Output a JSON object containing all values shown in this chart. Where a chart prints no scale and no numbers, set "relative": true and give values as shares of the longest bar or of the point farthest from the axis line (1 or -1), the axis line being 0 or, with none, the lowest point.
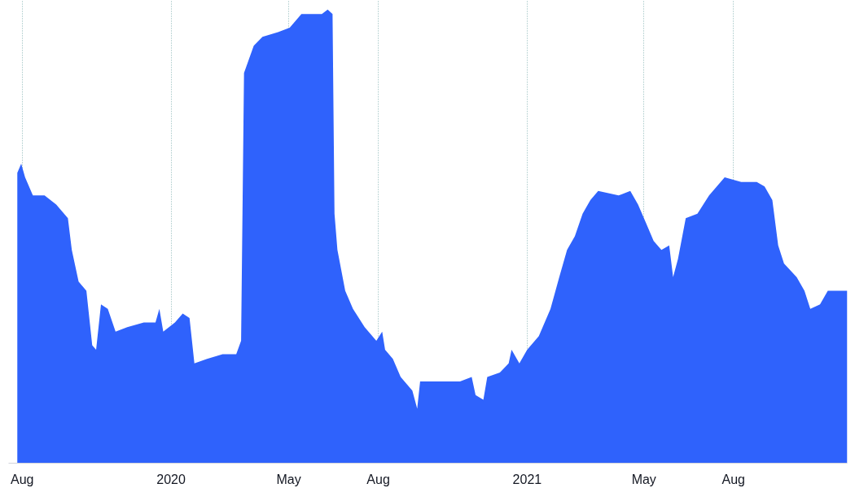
{
  "chart_data": {
    "type": "area",
    "relative": true,
    "grid": "x",
    "xlim": [
      "2019-07-18",
      "2021-11-26"
    ],
    "xticks": [
      {
        "value": "2019-08-01",
        "label": "Aug"
      },
      {
        "value": "2020-01-01",
        "label": "2020"
      },
      {
        "value": "2020-05-01",
        "label": "May"
      },
      {
        "value": "2020-08-01",
        "label": "Aug"
      },
      {
        "value": "2021-01-01",
        "label": "2021"
      },
      {
        "value": "2021-05-01",
        "label": "May"
      },
      {
        "value": "2021-08-01",
        "label": "Aug"
      }
    ],
    "x": [
      "2019-07-27",
      "2019-07-31",
      "2019-08-04",
      "2019-08-12",
      "2019-08-24",
      "2019-09-05",
      "2019-09-17",
      "2019-09-21",
      "2019-09-28",
      "2019-10-06",
      "2019-10-12",
      "2019-10-16",
      "2019-10-21",
      "2019-10-28",
      "2019-11-05",
      "2019-11-17",
      "2019-12-04",
      "2019-12-16",
      "2019-12-20",
      "2019-12-24",
      "2020-01-05",
      "2020-01-13",
      "2020-01-20",
      "2020-01-25",
      "2020-02-07",
      "2020-02-23",
      "2020-03-08",
      "2020-03-13",
      "2020-03-16",
      "2020-03-21",
      "2020-03-26",
      "2020-04-04",
      "2020-04-20",
      "2020-05-02",
      "2020-05-14",
      "2020-06-04",
      "2020-06-10",
      "2020-06-15",
      "2020-06-17",
      "2020-06-20",
      "2020-06-28",
      "2020-07-06",
      "2020-07-18",
      "2020-07-30",
      "2020-08-05",
      "2020-08-08",
      "2020-08-16",
      "2020-08-24",
      "2020-09-05",
      "2020-09-10",
      "2020-09-13",
      "2020-09-29",
      "2020-10-24",
      "2020-11-05",
      "2020-11-09",
      "2020-11-17",
      "2020-11-21",
      "2020-12-04",
      "2020-12-13",
      "2020-12-16",
      "2020-12-24",
      "2021-01-01",
      "2021-01-13",
      "2021-01-25",
      "2021-02-03",
      "2021-02-11",
      "2021-02-19",
      "2021-02-27",
      "2021-03-07",
      "2021-03-15",
      "2021-04-05",
      "2021-04-17",
      "2021-04-25",
      "2021-05-03",
      "2021-05-11",
      "2021-05-19",
      "2021-05-27",
      "2021-05-31",
      "2021-06-05",
      "2021-06-13",
      "2021-06-25",
      "2021-07-07",
      "2021-07-23",
      "2021-08-09",
      "2021-08-25",
      "2021-09-02",
      "2021-09-10",
      "2021-09-16",
      "2021-09-22",
      "2021-10-05",
      "2021-10-13",
      "2021-10-19",
      "2021-10-29",
      "2021-11-06",
      "2021-11-18",
      "2021-11-26"
    ],
    "series": [
      {
        "color": "#2f62fc",
        "values": [
          0.64,
          0.66,
          0.63,
          0.59,
          0.59,
          0.57,
          0.54,
          0.47,
          0.4,
          0.38,
          0.26,
          0.25,
          0.35,
          0.34,
          0.29,
          0.3,
          0.31,
          0.31,
          0.34,
          0.29,
          0.31,
          0.33,
          0.32,
          0.22,
          0.23,
          0.24,
          0.24,
          0.27,
          0.86,
          0.89,
          0.92,
          0.94,
          0.95,
          0.96,
          0.99,
          0.99,
          1,
          0.99,
          0.55,
          0.47,
          0.38,
          0.34,
          0.3,
          0.27,
          0.29,
          0.25,
          0.23,
          0.19,
          0.16,
          0.12,
          0.18,
          0.18,
          0.18,
          0.19,
          0.15,
          0.14,
          0.19,
          0.2,
          0.22,
          0.25,
          0.22,
          0.25,
          0.28,
          0.34,
          0.41,
          0.47,
          0.5,
          0.55,
          0.58,
          0.6,
          0.59,
          0.6,
          0.57,
          0.53,
          0.49,
          0.47,
          0.48,
          0.41,
          0.45,
          0.54,
          0.55,
          0.59,
          0.63,
          0.62,
          0.62,
          0.61,
          0.58,
          0.48,
          0.44,
          0.41,
          0.38,
          0.34,
          0.35,
          0.38,
          0.38,
          0.38
        ]
      }
    ]
  }
}
